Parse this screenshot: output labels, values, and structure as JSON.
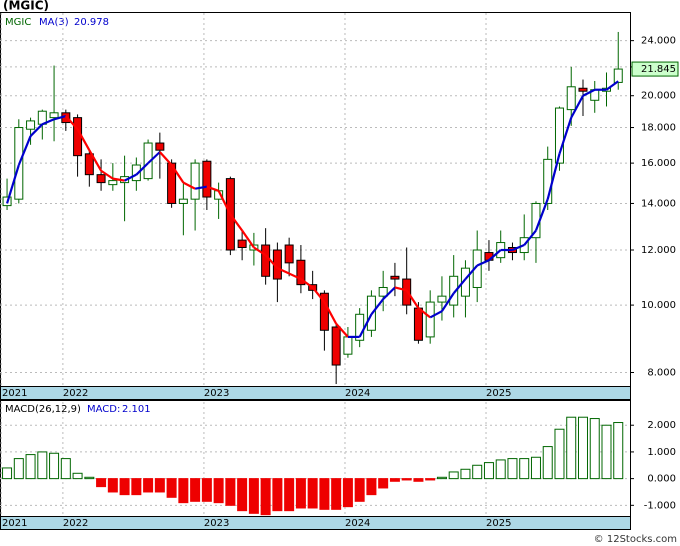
{
  "chart_data": [
    {
      "type": "candlestick",
      "title": "(MGIC)",
      "symbol": "MGIC",
      "log_scale": true,
      "grid": true,
      "up_color": "#006600",
      "down_color": "#ee0000",
      "categories": [
        null,
        null,
        null,
        null,
        null,
        null,
        null,
        null,
        null,
        null,
        null,
        null,
        null,
        null,
        null,
        null,
        null,
        null,
        null,
        null,
        null,
        null,
        null,
        null,
        null,
        null,
        null,
        null,
        null,
        null,
        null,
        null,
        null,
        null,
        null,
        null,
        null,
        null,
        null,
        null,
        null,
        null,
        null,
        null,
        null,
        null,
        null,
        null,
        null,
        null,
        null,
        null,
        null
      ],
      "open": [
        13.9,
        14.2,
        17.9,
        18.2,
        18.6,
        18.9,
        18.6,
        16.5,
        15.4,
        14.9,
        15.0,
        15.1,
        15.2,
        17.1,
        16.0,
        14.0,
        14.2,
        16.1,
        14.2,
        15.2,
        12.4,
        12.0,
        12.2,
        12.0,
        12.2,
        11.6,
        10.7,
        10.4,
        9.3,
        8.5,
        8.9,
        9.2,
        10.3,
        11.0,
        10.9,
        9.9,
        9.0,
        10.1,
        10.0,
        10.3,
        10.6,
        11.9,
        11.7,
        12.1,
        11.9,
        12.5,
        14.0,
        16.0,
        19.1,
        20.5,
        19.7,
        20.3,
        20.9
      ],
      "high": [
        15.2,
        18.5,
        18.6,
        19.1,
        22.1,
        19.1,
        18.8,
        16.7,
        16.2,
        16.0,
        16.4,
        16.3,
        17.3,
        17.7,
        16.2,
        15.0,
        16.2,
        16.2,
        15.0,
        15.3,
        12.8,
        12.7,
        12.9,
        12.3,
        12.5,
        12.2,
        11.2,
        10.5,
        9.4,
        9.3,
        9.9,
        10.5,
        11.2,
        11.5,
        12.1,
        10.1,
        10.5,
        11.0,
        11.8,
        11.6,
        12.8,
        12.4,
        12.8,
        12.3,
        13.5,
        14.1,
        16.9,
        19.3,
        22.0,
        21.1,
        21.0,
        21.6,
        24.7
      ],
      "low": [
        13.7,
        14.0,
        17.0,
        17.3,
        17.2,
        17.8,
        15.3,
        14.8,
        14.6,
        14.6,
        13.2,
        14.6,
        15.1,
        15.2,
        13.8,
        12.6,
        12.8,
        13.7,
        13.3,
        11.8,
        11.6,
        11.4,
        10.7,
        10.1,
        11.0,
        10.4,
        10.2,
        8.6,
        7.7,
        8.4,
        8.7,
        9.0,
        9.8,
        10.3,
        9.7,
        8.8,
        8.8,
        9.5,
        9.6,
        9.6,
        10.1,
        11.2,
        11.5,
        11.6,
        11.6,
        11.5,
        13.7,
        15.6,
        18.1,
        18.7,
        18.9,
        19.3,
        20.4
      ],
      "close": [
        14.3,
        18.0,
        18.4,
        19.0,
        18.9,
        18.3,
        16.4,
        15.4,
        15.0,
        15.1,
        15.3,
        15.9,
        17.1,
        16.7,
        14.0,
        14.2,
        16.0,
        14.3,
        14.6,
        12.0,
        12.1,
        12.2,
        11.0,
        10.9,
        11.5,
        10.7,
        10.5,
        9.2,
        8.2,
        9.0,
        9.7,
        10.3,
        10.6,
        10.9,
        10.0,
        8.9,
        10.1,
        10.3,
        11.0,
        11.3,
        12.0,
        11.6,
        12.3,
        11.9,
        12.5,
        14.0,
        16.2,
        19.2,
        20.6,
        20.3,
        20.4,
        20.5,
        21.845
      ],
      "overlays": [
        {
          "name": "MA(3)",
          "up_color": "#0000cc",
          "down_color": "#ff0000",
          "values": [
            14.0,
            15.9,
            17.5,
            18.2,
            18.5,
            18.7,
            17.9,
            16.7,
            15.6,
            15.2,
            15.1,
            15.4,
            16.0,
            16.6,
            15.9,
            15.0,
            14.7,
            14.8,
            14.6,
            13.5,
            12.8,
            12.1,
            11.8,
            11.3,
            11.1,
            10.9,
            10.6,
            10.1,
            9.4,
            9.0,
            9.0,
            9.7,
            10.2,
            10.6,
            10.5,
            9.9,
            9.6,
            9.8,
            10.4,
            10.9,
            11.4,
            11.6,
            12.0,
            12.0,
            12.2,
            12.8,
            14.2,
            16.5,
            18.6,
            20.0,
            20.4,
            20.4,
            20.978
          ]
        }
      ],
      "xlim": [
        -0.6,
        53.0
      ],
      "xticks": [
        {
          "value": -0.5,
          "label": "2021"
        },
        {
          "value": 4.75,
          "label": "2022"
        },
        {
          "value": 16.75,
          "label": "2023"
        },
        {
          "value": 28.75,
          "label": "2024"
        },
        {
          "value": 40.75,
          "label": "2025"
        }
      ],
      "ylim": [
        7.65,
        26.3
      ],
      "yticks": [
        {
          "value": 8,
          "label": "8.000"
        },
        {
          "value": 10,
          "label": "10.000"
        },
        {
          "value": 12,
          "label": "12.000"
        },
        {
          "value": 14,
          "label": "14.000"
        },
        {
          "value": 16,
          "label": "16.000"
        },
        {
          "value": 18,
          "label": "18.000"
        },
        {
          "value": 20,
          "label": "20.000"
        },
        {
          "value": 22,
          "label": "22.000"
        },
        {
          "value": 24,
          "label": "24.000"
        }
      ]
    },
    {
      "type": "histogram-bars",
      "title": "MACD(26,12,9)",
      "value_caption": "MACD:",
      "grid": true,
      "up_color": "#006600",
      "down_color": "#ee0000",
      "values": [
        0.4,
        0.75,
        0.9,
        1.0,
        0.95,
        0.75,
        0.2,
        0.05,
        -0.3,
        -0.5,
        -0.6,
        -0.6,
        -0.5,
        -0.5,
        -0.7,
        -0.9,
        -0.85,
        -0.85,
        -0.9,
        -1.0,
        -1.2,
        -1.3,
        -1.35,
        -1.2,
        -1.2,
        -1.1,
        -1.1,
        -1.15,
        -1.15,
        -1.05,
        -0.85,
        -0.6,
        -0.35,
        -0.1,
        -0.05,
        -0.1,
        -0.05,
        0.05,
        0.25,
        0.35,
        0.5,
        0.6,
        0.7,
        0.75,
        0.75,
        0.8,
        1.2,
        1.85,
        2.3,
        2.3,
        2.25,
        2.0,
        2.101
      ],
      "xlim": [
        -0.6,
        53.0
      ],
      "xticks": [
        {
          "value": -0.5,
          "label": "2021"
        },
        {
          "value": 4.75,
          "label": "2022"
        },
        {
          "value": 16.75,
          "label": "2023"
        },
        {
          "value": 28.75,
          "label": "2024"
        },
        {
          "value": 40.75,
          "label": "2025"
        }
      ],
      "ylim": [
        -1.4,
        2.87
      ],
      "yticks": [
        {
          "value": -1,
          "label": "-1.000"
        },
        {
          "value": 0,
          "label": "0.000"
        },
        {
          "value": 1,
          "label": "1.000"
        },
        {
          "value": 2,
          "label": "2.000"
        }
      ]
    }
  ],
  "footer": "© 12Stocks.com"
}
